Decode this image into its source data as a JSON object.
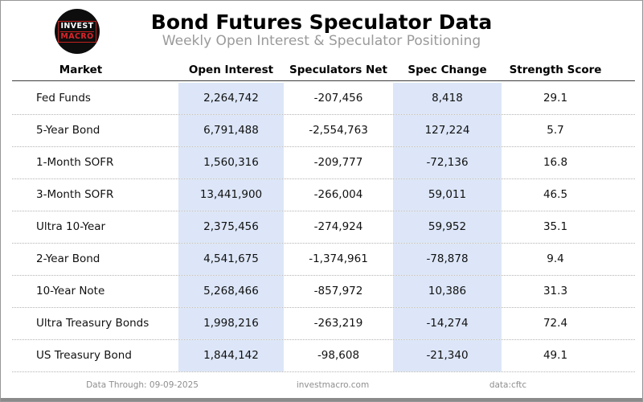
{
  "page": {
    "title": "Bond Futures Speculator Data",
    "subtitle": "Weekly Open Interest & Speculator Positioning"
  },
  "logo": {
    "line1": "INVEST",
    "line2": "MACRO"
  },
  "table": {
    "columns": [
      "Market",
      "Open Interest",
      "Speculators Net",
      "Spec Change",
      "Strength Score"
    ],
    "rows": [
      {
        "market": "Fed Funds",
        "open_interest": "2,264,742",
        "speculators_net": "-207,456",
        "spec_change": "8,418",
        "strength_score": "29.1"
      },
      {
        "market": "5-Year Bond",
        "open_interest": "6,791,488",
        "speculators_net": "-2,554,763",
        "spec_change": "127,224",
        "strength_score": "5.7"
      },
      {
        "market": "1-Month SOFR",
        "open_interest": "1,560,316",
        "speculators_net": "-209,777",
        "spec_change": "-72,136",
        "strength_score": "16.8"
      },
      {
        "market": "3-Month SOFR",
        "open_interest": "13,441,900",
        "speculators_net": "-266,004",
        "spec_change": "59,011",
        "strength_score": "46.5"
      },
      {
        "market": "Ultra 10-Year",
        "open_interest": "2,375,456",
        "speculators_net": "-274,924",
        "spec_change": "59,952",
        "strength_score": "35.1"
      },
      {
        "market": "2-Year Bond",
        "open_interest": "4,541,675",
        "speculators_net": "-1,374,961",
        "spec_change": "-78,878",
        "strength_score": "9.4"
      },
      {
        "market": "10-Year Note",
        "open_interest": "5,268,466",
        "speculators_net": "-857,972",
        "spec_change": "10,386",
        "strength_score": "31.3"
      },
      {
        "market": "Ultra Treasury Bonds",
        "open_interest": "1,998,216",
        "speculators_net": "-263,219",
        "spec_change": "-14,274",
        "strength_score": "72.4"
      },
      {
        "market": "US Treasury Bond",
        "open_interest": "1,844,142",
        "speculators_net": "-98,608",
        "spec_change": "-21,340",
        "strength_score": "49.1"
      }
    ]
  },
  "footer": {
    "data_through": "Data Through: 09-09-2025",
    "site": "investmacro.com",
    "source": "data:cftc"
  },
  "colors": {
    "highlight_column": "#dce6f8",
    "subtitle_gray": "#9a9a9a",
    "footer_gray": "#8f8f8f",
    "logo_red": "#d8262c",
    "header_underline": "#3d3d3d",
    "bottom_bar": "#8a8a8a",
    "page_border": "#979797"
  },
  "chart_data": {
    "type": "table",
    "title": "Bond Futures Speculator Data",
    "subtitle": "Weekly Open Interest & Speculator Positioning",
    "columns": [
      "Market",
      "Open Interest",
      "Speculators Net",
      "Spec Change",
      "Strength Score"
    ],
    "rows": [
      [
        "Fed Funds",
        2264742,
        -207456,
        8418,
        29.1
      ],
      [
        "5-Year Bond",
        6791488,
        -2554763,
        127224,
        5.7
      ],
      [
        "1-Month SOFR",
        1560316,
        -209777,
        -72136,
        16.8
      ],
      [
        "3-Month SOFR",
        13441900,
        -266004,
        59011,
        46.5
      ],
      [
        "Ultra 10-Year",
        2375456,
        -274924,
        59952,
        35.1
      ],
      [
        "2-Year Bond",
        4541675,
        -1374961,
        -78878,
        9.4
      ],
      [
        "10-Year Note",
        5268466,
        -857972,
        10386,
        31.3
      ],
      [
        "Ultra Treasury Bonds",
        1998216,
        -263219,
        -14274,
        72.4
      ],
      [
        "US Treasury Bond",
        1844142,
        -98608,
        -21340,
        49.1
      ]
    ],
    "highlighted_columns": [
      "Open Interest",
      "Spec Change"
    ],
    "footer": {
      "data_through": "09-09-2025",
      "site": "investmacro.com",
      "source": "cftc"
    }
  }
}
